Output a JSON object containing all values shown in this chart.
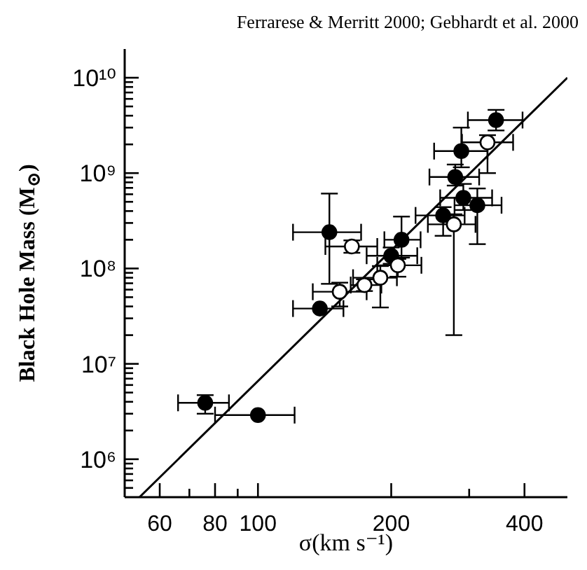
{
  "chart_data": {
    "type": "scatter",
    "xlabel": "σ(km s⁻¹)",
    "ylabel": "Black Hole Mass (M$_{⊙}$)",
    "annotations": [
      "Ferrarese & Merritt 2000; Gebhardt et al. 2000"
    ],
    "log": "xy",
    "marker": "circle",
    "xlim": [
      50,
      500
    ],
    "ylim": [
      400000,
      20000000000
    ],
    "xticks": [
      60,
      {
        "value": 70,
        "label": null
      },
      80,
      {
        "value": 90,
        "label": null
      },
      100,
      200,
      {
        "value": 300,
        "label": null
      },
      400
    ],
    "yticks": [
      {
        "value": 500000,
        "label": null
      },
      {
        "value": 600000,
        "label": null
      },
      {
        "value": 700000,
        "label": null
      },
      {
        "value": 800000,
        "label": null
      },
      {
        "value": 900000,
        "label": null
      },
      {
        "value": 1000000.0,
        "label": "10⁶"
      },
      {
        "value": 2000000.0,
        "label": null
      },
      {
        "value": 3000000.0,
        "label": null
      },
      {
        "value": 4000000.0,
        "label": null
      },
      {
        "value": 5000000.0,
        "label": null
      },
      {
        "value": 6000000.0,
        "label": null
      },
      {
        "value": 7000000.0,
        "label": null
      },
      {
        "value": 8000000.0,
        "label": null
      },
      {
        "value": 9000000.0,
        "label": null
      },
      {
        "value": 10000000.0,
        "label": "10⁷"
      },
      {
        "value": 20000000.0,
        "label": null
      },
      {
        "value": 30000000.0,
        "label": null
      },
      {
        "value": 40000000.0,
        "label": null
      },
      {
        "value": 50000000.0,
        "label": null
      },
      {
        "value": 60000000.0,
        "label": null
      },
      {
        "value": 70000000.0,
        "label": null
      },
      {
        "value": 80000000.0,
        "label": null
      },
      {
        "value": 90000000.0,
        "label": null
      },
      {
        "value": 100000000.0,
        "label": "10⁸"
      },
      {
        "value": 200000000.0,
        "label": null
      },
      {
        "value": 300000000.0,
        "label": null
      },
      {
        "value": 400000000.0,
        "label": null
      },
      {
        "value": 500000000.0,
        "label": null
      },
      {
        "value": 600000000.0,
        "label": null
      },
      {
        "value": 700000000.0,
        "label": null
      },
      {
        "value": 800000000.0,
        "label": null
      },
      {
        "value": 900000000.0,
        "label": null
      },
      {
        "value": 1000000000.0,
        "label": "10⁹"
      },
      {
        "value": 2000000000.0,
        "label": null
      },
      {
        "value": 3000000000.0,
        "label": null
      },
      {
        "value": 4000000000.0,
        "label": null
      },
      {
        "value": 5000000000.0,
        "label": null
      },
      {
        "value": 6000000000.0,
        "label": null
      },
      {
        "value": 7000000000.0,
        "label": null
      },
      {
        "value": 8000000000.0,
        "label": null
      },
      {
        "value": 9000000000.0,
        "label": null
      },
      {
        "value": 10000000000.0,
        "label": "10¹⁰"
      }
    ],
    "series": [
      {
        "color": "#000000",
        "x": [
          345,
          288,
          279,
          291,
          313,
          262,
          145,
          211,
          200,
          138,
          76,
          100
        ],
        "values": [
          3600000000.0,
          1700000000.0,
          910000000.0,
          550000000.0,
          460000000.0,
          360000000.0,
          240000000.0,
          200000000.0,
          136000000.0,
          38000000.0,
          3900000.0,
          2900000.0
        ],
        "errors": [
          [
            2800000000.0,
            4600000000.0
          ],
          [
            1150000000.0,
            3000000000.0
          ],
          [
            740000000.0,
            1230000000.0
          ],
          [
            410000000.0,
            770000000.0
          ],
          [
            180000000.0,
            690000000.0
          ],
          [
            220000000.0,
            440000000.0
          ],
          [
            69000000.0,
            610000000.0
          ],
          [
            130000000.0,
            350000000.0
          ],
          [
            112000000.0,
            166000000.0
          ],
          null,
          [
            3000000.0,
            4700000.0
          ],
          null
        ],
        "xerrors": [
          [
            298,
            396
          ],
          [
            250,
            330
          ],
          [
            244,
            316
          ],
          [
            258,
            338
          ],
          [
            278,
            355
          ],
          [
            227,
            293
          ],
          [
            120,
            171
          ],
          [
            193,
            233
          ],
          [
            176,
            229
          ],
          [
            120,
            156
          ],
          [
            66,
            86
          ],
          [
            80,
            121
          ]
        ]
      },
      {
        "color": "#ffffff",
        "x": [
          330,
          163,
          207,
          189,
          174,
          153,
          277
        ],
        "values": [
          2100000000.0,
          170000000.0,
          108000000.0,
          80000000.0,
          67000000.0,
          57000000.0,
          290000000.0
        ],
        "errors": [
          [
            1000000000.0,
            2500000000.0
          ],
          [
            146000000.0,
            197000000.0
          ],
          [
            82000000.0,
            126000000.0
          ],
          [
            39000000.0,
            106000000.0
          ],
          [
            58000000.0,
            77000000.0
          ],
          [
            40000000.0,
            71000000.0
          ],
          [
            20000000.0,
            370000000.0
          ]
        ],
        "xerrors": [
          [
            289,
            377
          ],
          [
            142,
            186
          ],
          [
            186,
            234
          ],
          [
            164,
            206
          ],
          [
            162,
            190
          ],
          [
            133,
            176
          ],
          [
            242,
            310
          ]
        ]
      },
      {
        "type": "line",
        "color": "#000000",
        "marker": "none",
        "x": [
          54,
          500
        ],
        "values": [
          400000.0,
          10000000000.0
        ]
      }
    ]
  }
}
